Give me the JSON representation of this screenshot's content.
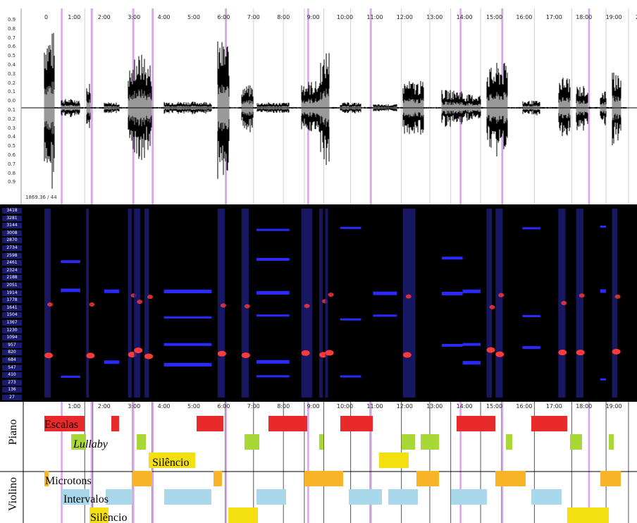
{
  "waveform": {
    "amplitude_labels": [
      "0.9",
      "0.8",
      "0.7",
      "0.6",
      "0.5",
      "0.4",
      "0.3",
      "0.2",
      "0.1",
      "0.0",
      "0.1",
      "0.2",
      "0.3",
      "0.4",
      "0.5",
      "0.6",
      "0.7",
      "0.8",
      "0.9"
    ],
    "top_time_labels": [
      "0",
      "1:00",
      "2:00",
      "3:00",
      "4:00",
      "5:00",
      "6:00",
      "7:00",
      "8:00",
      "9:00",
      "10:00",
      "11:00",
      "12:00",
      "13:00",
      "14:00",
      "15:00",
      "16:00",
      "17:00",
      "18:00",
      "19:00",
      "2"
    ],
    "status_text": "1869.36 / 44",
    "colors": {
      "outer": "#000000",
      "inner": "#999999",
      "marker": "#d9a7e8"
    }
  },
  "spectrogram": {
    "frequency_labels": [
      "3418",
      "3281",
      "3144",
      "3008",
      "2870",
      "2734",
      "2598",
      "2461",
      "2324",
      "2188",
      "2051",
      "1914",
      "1778",
      "1641",
      "1504",
      "1367",
      "1230",
      "1094",
      "957",
      "820",
      "684",
      "547",
      "410",
      "273",
      "136",
      "27"
    ],
    "colors": {
      "background": "#000000",
      "band": "#2a2aff",
      "hot": "#ff3a3a"
    }
  },
  "tracks": {
    "time_labels": [
      "1:00",
      "2:00",
      "3:00",
      "4:00",
      "5:00",
      "6:00",
      "7:00",
      "8:00",
      "9:00",
      "10:00",
      "11:00",
      "12:00",
      "13:00",
      "14:00",
      "15:00",
      "16:00",
      "17:00",
      "18:00",
      "19:00"
    ],
    "instruments": [
      {
        "name": "Piano",
        "rows": [
          {
            "label": "Escalas",
            "italic": false,
            "color": "#e82a2a"
          },
          {
            "label": "Lullaby",
            "italic": true,
            "color": "#a8d838"
          },
          {
            "label": "Silêncio",
            "italic": false,
            "color": "#f4e010"
          }
        ]
      },
      {
        "name": "Violino",
        "rows": [
          {
            "label": "Microtons",
            "italic": false,
            "color": "#f7b429"
          },
          {
            "label": "Intervalos",
            "italic": false,
            "color": "#a8d8ea"
          },
          {
            "label": "Silêncio",
            "italic": false,
            "color": "#f4e010"
          }
        ]
      }
    ]
  }
}
